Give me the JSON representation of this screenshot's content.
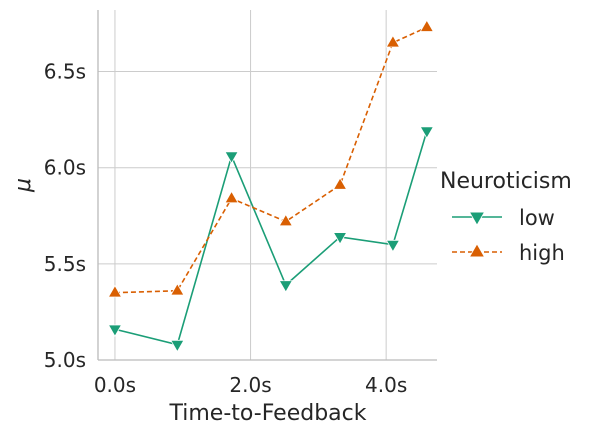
{
  "chart_data": {
    "type": "line",
    "xlabel": "Time-to-Feedback",
    "ylabel": "μ",
    "x_ticks": [
      {
        "value": 0,
        "label": "0.0s"
      },
      {
        "value": 2,
        "label": "2.0s"
      },
      {
        "value": 4,
        "label": "4.0s"
      }
    ],
    "y_ticks": [
      {
        "value": 5.0,
        "label": "5.0s"
      },
      {
        "value": 5.5,
        "label": "5.5s"
      },
      {
        "value": 6.0,
        "label": "6.0s"
      },
      {
        "value": 6.5,
        "label": "6.5s"
      }
    ],
    "xlim": [
      -0.25,
      4.75
    ],
    "ylim": [
      5.0,
      6.82
    ],
    "grid": true,
    "legend": {
      "title": "Neuroticism",
      "placement": "right"
    },
    "series": [
      {
        "name": "low",
        "color": "#1b9e77",
        "linestyle": "solid",
        "marker": "triangle-down",
        "x": [
          0.0,
          0.92,
          1.72,
          2.52,
          3.32,
          4.1,
          4.6
        ],
        "y": [
          5.16,
          5.08,
          6.06,
          5.39,
          5.64,
          5.6,
          6.19
        ]
      },
      {
        "name": "high",
        "color": "#d95f02",
        "linestyle": "dashed",
        "marker": "triangle-up",
        "x": [
          0.0,
          0.92,
          1.72,
          2.52,
          3.32,
          4.1,
          4.6
        ],
        "y": [
          5.35,
          5.36,
          5.84,
          5.72,
          5.91,
          6.65,
          6.73
        ]
      }
    ]
  }
}
